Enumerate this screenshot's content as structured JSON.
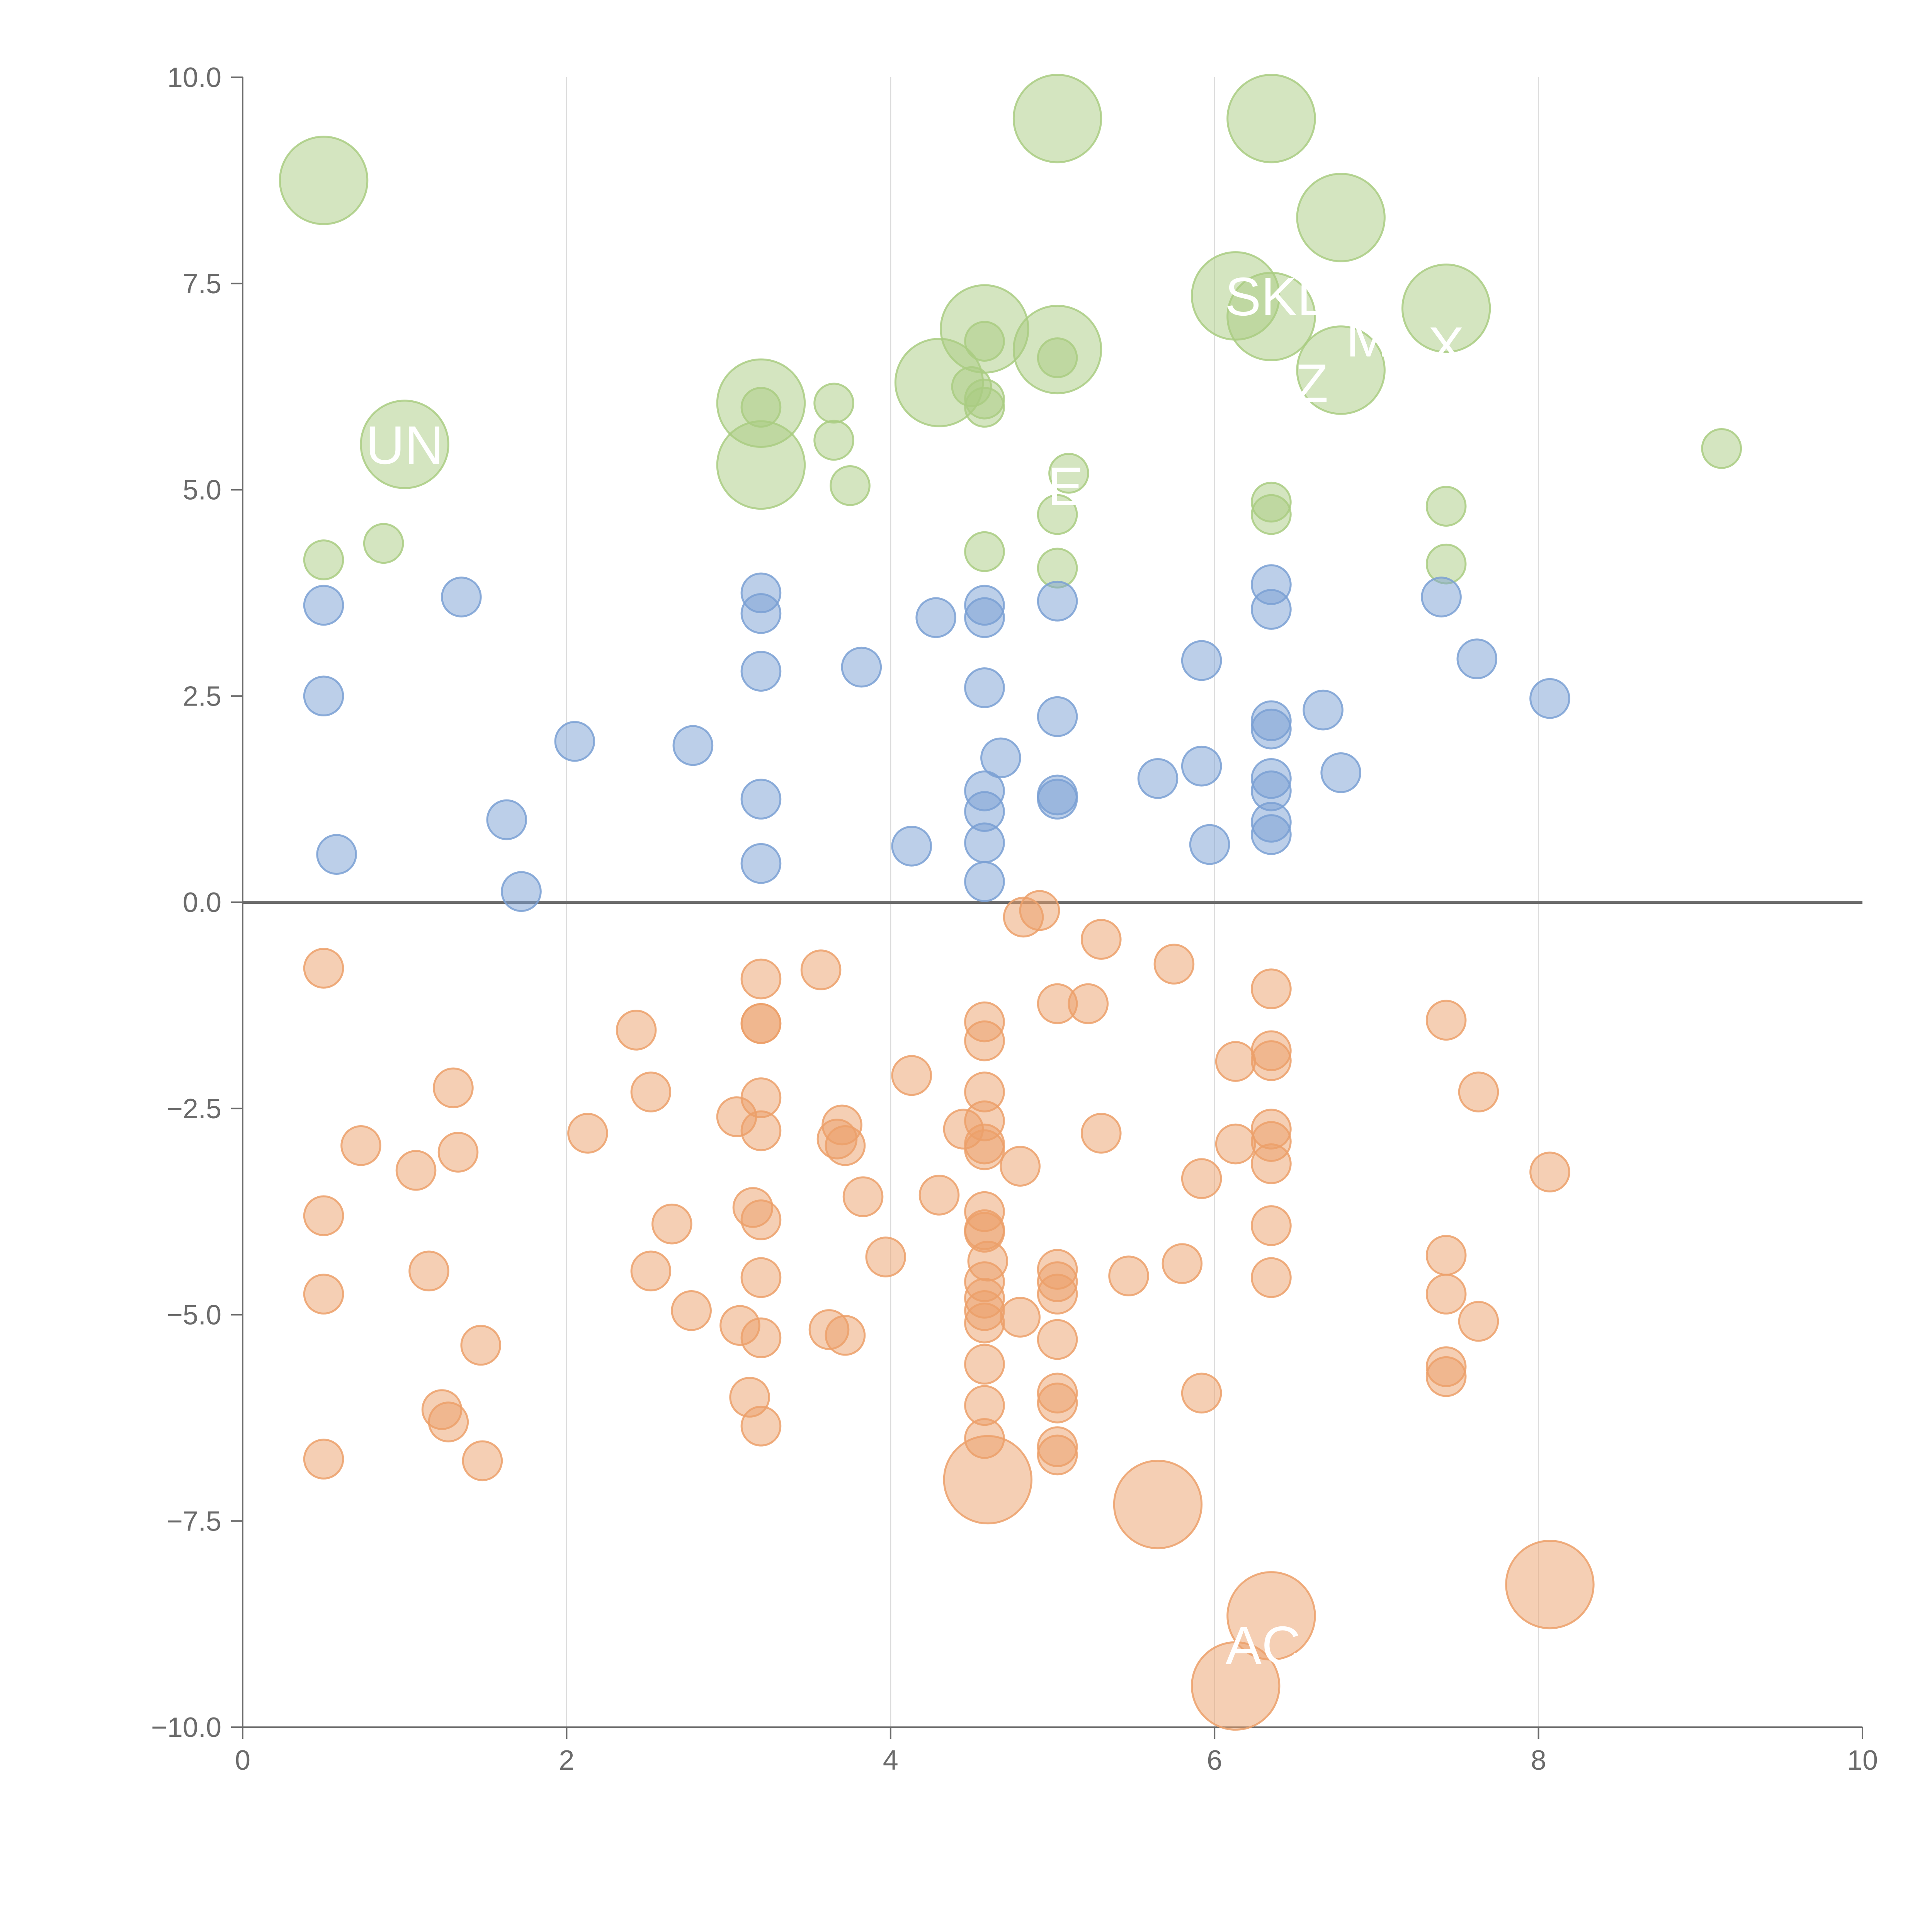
{
  "chart_data": {
    "type": "scatter",
    "title": "",
    "xlabel": "",
    "ylabel": "",
    "xlim": [
      0,
      10
    ],
    "ylim": [
      -10,
      10
    ],
    "x_ticks": [
      "0",
      "2",
      "4",
      "6",
      "8",
      "10"
    ],
    "y_ticks": [
      "−10.0",
      "−7.5",
      "−5.0",
      "−2.5",
      "0.0",
      "2.5",
      "5.0",
      "7.5",
      "10.0"
    ],
    "colors": {
      "green": "#a9cc81",
      "blue": "#7aa0d4",
      "orange": "#eca06a",
      "axis": "#6b6b6b",
      "grid": "#dcdcdc"
    },
    "series": [
      {
        "name": "green",
        "color": "#a9cc81",
        "points": [
          {
            "x": 0.5,
            "y": 8.75,
            "r": 0.27
          },
          {
            "x": 1.0,
            "y": 5.55,
            "r": 0.27
          },
          {
            "x": 0.5,
            "y": 4.15,
            "r": 0.12
          },
          {
            "x": 0.87,
            "y": 4.35,
            "r": 0.12
          },
          {
            "x": 3.2,
            "y": 6.05,
            "r": 0.27
          },
          {
            "x": 3.2,
            "y": 5.3,
            "r": 0.27
          },
          {
            "x": 3.2,
            "y": 6.0,
            "r": 0.12
          },
          {
            "x": 3.65,
            "y": 6.05,
            "r": 0.12
          },
          {
            "x": 3.65,
            "y": 5.6,
            "r": 0.12
          },
          {
            "x": 3.75,
            "y": 5.05,
            "r": 0.12
          },
          {
            "x": 4.3,
            "y": 6.3,
            "r": 0.27
          },
          {
            "x": 4.58,
            "y": 6.95,
            "r": 0.27
          },
          {
            "x": 4.58,
            "y": 6.8,
            "r": 0.12
          },
          {
            "x": 4.5,
            "y": 6.25,
            "r": 0.12
          },
          {
            "x": 4.58,
            "y": 6.1,
            "r": 0.12
          },
          {
            "x": 4.58,
            "y": 6.0,
            "r": 0.12
          },
          {
            "x": 4.58,
            "y": 4.25,
            "r": 0.12
          },
          {
            "x": 5.03,
            "y": 9.5,
            "r": 0.27
          },
          {
            "x": 5.03,
            "y": 6.7,
            "r": 0.27
          },
          {
            "x": 5.03,
            "y": 6.6,
            "r": 0.12
          },
          {
            "x": 5.1,
            "y": 5.2,
            "r": 0.12
          },
          {
            "x": 5.03,
            "y": 4.7,
            "r": 0.12
          },
          {
            "x": 5.03,
            "y": 4.05,
            "r": 0.12
          },
          {
            "x": 6.13,
            "y": 7.35,
            "r": 0.27
          },
          {
            "x": 6.35,
            "y": 9.5,
            "r": 0.27
          },
          {
            "x": 6.35,
            "y": 7.1,
            "r": 0.27
          },
          {
            "x": 6.35,
            "y": 4.85,
            "r": 0.12
          },
          {
            "x": 6.35,
            "y": 4.7,
            "r": 0.12
          },
          {
            "x": 6.78,
            "y": 8.3,
            "r": 0.27
          },
          {
            "x": 6.78,
            "y": 6.45,
            "r": 0.27
          },
          {
            "x": 7.43,
            "y": 7.2,
            "r": 0.27
          },
          {
            "x": 7.43,
            "y": 4.8,
            "r": 0.12
          },
          {
            "x": 7.43,
            "y": 4.1,
            "r": 0.12
          },
          {
            "x": 9.13,
            "y": 5.5,
            "r": 0.12
          }
        ]
      },
      {
        "name": "blue",
        "color": "#7aa0d4",
        "points": [
          {
            "x": 0.5,
            "y": 3.6,
            "r": 0.12
          },
          {
            "x": 0.5,
            "y": 2.5,
            "r": 0.12
          },
          {
            "x": 0.58,
            "y": 0.58,
            "r": 0.12
          },
          {
            "x": 1.35,
            "y": 3.7,
            "r": 0.12
          },
          {
            "x": 1.63,
            "y": 1.0,
            "r": 0.12
          },
          {
            "x": 1.72,
            "y": 0.13,
            "r": 0.12
          },
          {
            "x": 2.05,
            "y": 1.95,
            "r": 0.12
          },
          {
            "x": 2.78,
            "y": 1.9,
            "r": 0.12
          },
          {
            "x": 3.2,
            "y": 3.75,
            "r": 0.12
          },
          {
            "x": 3.2,
            "y": 3.5,
            "r": 0.12
          },
          {
            "x": 3.2,
            "y": 2.8,
            "r": 0.12
          },
          {
            "x": 3.2,
            "y": 1.25,
            "r": 0.12
          },
          {
            "x": 3.2,
            "y": 0.47,
            "r": 0.12
          },
          {
            "x": 3.82,
            "y": 2.85,
            "r": 0.12
          },
          {
            "x": 4.13,
            "y": 0.68,
            "r": 0.12
          },
          {
            "x": 4.28,
            "y": 3.45,
            "r": 0.12
          },
          {
            "x": 4.58,
            "y": 3.6,
            "r": 0.12
          },
          {
            "x": 4.58,
            "y": 3.45,
            "r": 0.12
          },
          {
            "x": 4.58,
            "y": 2.6,
            "r": 0.12
          },
          {
            "x": 4.68,
            "y": 1.75,
            "r": 0.12
          },
          {
            "x": 4.58,
            "y": 1.35,
            "r": 0.12
          },
          {
            "x": 4.58,
            "y": 1.1,
            "r": 0.12
          },
          {
            "x": 4.58,
            "y": 0.72,
            "r": 0.12
          },
          {
            "x": 4.58,
            "y": 0.25,
            "r": 0.12
          },
          {
            "x": 5.03,
            "y": 3.65,
            "r": 0.12
          },
          {
            "x": 5.03,
            "y": 2.25,
            "r": 0.12
          },
          {
            "x": 5.03,
            "y": 1.3,
            "r": 0.12
          },
          {
            "x": 5.03,
            "y": 1.25,
            "r": 0.12
          },
          {
            "x": 5.65,
            "y": 1.5,
            "r": 0.12
          },
          {
            "x": 5.92,
            "y": 2.93,
            "r": 0.12
          },
          {
            "x": 5.92,
            "y": 1.65,
            "r": 0.12
          },
          {
            "x": 5.97,
            "y": 0.7,
            "r": 0.12
          },
          {
            "x": 6.35,
            "y": 3.85,
            "r": 0.12
          },
          {
            "x": 6.35,
            "y": 3.55,
            "r": 0.12
          },
          {
            "x": 6.35,
            "y": 2.2,
            "r": 0.12
          },
          {
            "x": 6.35,
            "y": 2.1,
            "r": 0.12
          },
          {
            "x": 6.35,
            "y": 1.5,
            "r": 0.12
          },
          {
            "x": 6.35,
            "y": 1.35,
            "r": 0.12
          },
          {
            "x": 6.35,
            "y": 0.97,
            "r": 0.12
          },
          {
            "x": 6.35,
            "y": 0.82,
            "r": 0.12
          },
          {
            "x": 6.67,
            "y": 2.33,
            "r": 0.12
          },
          {
            "x": 6.78,
            "y": 1.57,
            "r": 0.12
          },
          {
            "x": 7.4,
            "y": 3.7,
            "r": 0.12
          },
          {
            "x": 7.62,
            "y": 2.95,
            "r": 0.12
          },
          {
            "x": 8.07,
            "y": 2.47,
            "r": 0.12
          }
        ]
      },
      {
        "name": "orange",
        "color": "#eca06a",
        "points": [
          {
            "x": 0.5,
            "y": -0.8,
            "r": 0.12
          },
          {
            "x": 0.5,
            "y": -3.8,
            "r": 0.12
          },
          {
            "x": 0.5,
            "y": -4.75,
            "r": 0.12
          },
          {
            "x": 0.5,
            "y": -6.75,
            "r": 0.12
          },
          {
            "x": 0.73,
            "y": -2.95,
            "r": 0.12
          },
          {
            "x": 1.07,
            "y": -3.25,
            "r": 0.12
          },
          {
            "x": 1.15,
            "y": -4.47,
            "r": 0.12
          },
          {
            "x": 1.23,
            "y": -6.15,
            "r": 0.12
          },
          {
            "x": 1.27,
            "y": -6.3,
            "r": 0.12
          },
          {
            "x": 1.3,
            "y": -2.25,
            "r": 0.12
          },
          {
            "x": 1.33,
            "y": -3.03,
            "r": 0.12
          },
          {
            "x": 1.47,
            "y": -5.37,
            "r": 0.12
          },
          {
            "x": 1.48,
            "y": -6.77,
            "r": 0.12
          },
          {
            "x": 2.13,
            "y": -2.8,
            "r": 0.12
          },
          {
            "x": 2.43,
            "y": -1.55,
            "r": 0.12
          },
          {
            "x": 2.52,
            "y": -2.3,
            "r": 0.12
          },
          {
            "x": 2.52,
            "y": -4.47,
            "r": 0.12
          },
          {
            "x": 2.65,
            "y": -3.9,
            "r": 0.12
          },
          {
            "x": 2.77,
            "y": -4.95,
            "r": 0.12
          },
          {
            "x": 3.05,
            "y": -2.6,
            "r": 0.12
          },
          {
            "x": 3.07,
            "y": -5.13,
            "r": 0.12
          },
          {
            "x": 3.13,
            "y": -6.0,
            "r": 0.12
          },
          {
            "x": 3.15,
            "y": -3.7,
            "r": 0.12
          },
          {
            "x": 3.2,
            "y": -0.93,
            "r": 0.12
          },
          {
            "x": 3.2,
            "y": -1.47,
            "r": 0.12
          },
          {
            "x": 3.2,
            "y": -1.47,
            "r": 0.12
          },
          {
            "x": 3.2,
            "y": -2.37,
            "r": 0.12
          },
          {
            "x": 3.2,
            "y": -2.77,
            "r": 0.12
          },
          {
            "x": 3.2,
            "y": -3.85,
            "r": 0.12
          },
          {
            "x": 3.2,
            "y": -4.55,
            "r": 0.12
          },
          {
            "x": 3.2,
            "y": -5.28,
            "r": 0.12
          },
          {
            "x": 3.2,
            "y": -6.35,
            "r": 0.12
          },
          {
            "x": 3.57,
            "y": -0.82,
            "r": 0.12
          },
          {
            "x": 3.62,
            "y": -5.18,
            "r": 0.12
          },
          {
            "x": 3.67,
            "y": -2.87,
            "r": 0.12
          },
          {
            "x": 3.7,
            "y": -2.7,
            "r": 0.12
          },
          {
            "x": 3.72,
            "y": -2.95,
            "r": 0.12
          },
          {
            "x": 3.72,
            "y": -5.25,
            "r": 0.12
          },
          {
            "x": 3.83,
            "y": -3.57,
            "r": 0.12
          },
          {
            "x": 3.97,
            "y": -4.3,
            "r": 0.12
          },
          {
            "x": 4.13,
            "y": -2.1,
            "r": 0.12
          },
          {
            "x": 4.3,
            "y": -3.55,
            "r": 0.12
          },
          {
            "x": 4.45,
            "y": -2.75,
            "r": 0.12
          },
          {
            "x": 4.58,
            "y": -1.45,
            "r": 0.12
          },
          {
            "x": 4.58,
            "y": -1.68,
            "r": 0.12
          },
          {
            "x": 4.58,
            "y": -2.3,
            "r": 0.12
          },
          {
            "x": 4.58,
            "y": -2.65,
            "r": 0.12
          },
          {
            "x": 4.58,
            "y": -2.93,
            "r": 0.12
          },
          {
            "x": 4.58,
            "y": -3.0,
            "r": 0.12
          },
          {
            "x": 4.58,
            "y": -3.75,
            "r": 0.12
          },
          {
            "x": 4.58,
            "y": -3.97,
            "r": 0.12
          },
          {
            "x": 4.58,
            "y": -4.0,
            "r": 0.12
          },
          {
            "x": 4.6,
            "y": -4.35,
            "r": 0.12
          },
          {
            "x": 4.58,
            "y": -4.6,
            "r": 0.12
          },
          {
            "x": 4.58,
            "y": -4.8,
            "r": 0.12
          },
          {
            "x": 4.58,
            "y": -4.95,
            "r": 0.12
          },
          {
            "x": 4.58,
            "y": -5.1,
            "r": 0.12
          },
          {
            "x": 4.58,
            "y": -5.6,
            "r": 0.12
          },
          {
            "x": 4.58,
            "y": -6.1,
            "r": 0.12
          },
          {
            "x": 4.58,
            "y": -6.5,
            "r": 0.12
          },
          {
            "x": 4.6,
            "y": -7.0,
            "r": 0.27
          },
          {
            "x": 4.8,
            "y": -3.2,
            "r": 0.12
          },
          {
            "x": 4.8,
            "y": -5.03,
            "r": 0.12
          },
          {
            "x": 4.82,
            "y": -0.18,
            "r": 0.12
          },
          {
            "x": 4.92,
            "y": -0.1,
            "r": 0.12
          },
          {
            "x": 5.03,
            "y": -1.23,
            "r": 0.12
          },
          {
            "x": 5.03,
            "y": -4.45,
            "r": 0.12
          },
          {
            "x": 5.03,
            "y": -4.6,
            "r": 0.12
          },
          {
            "x": 5.03,
            "y": -4.75,
            "r": 0.12
          },
          {
            "x": 5.03,
            "y": -5.3,
            "r": 0.12
          },
          {
            "x": 5.03,
            "y": -5.95,
            "r": 0.12
          },
          {
            "x": 5.03,
            "y": -6.07,
            "r": 0.12
          },
          {
            "x": 5.03,
            "y": -6.6,
            "r": 0.12
          },
          {
            "x": 5.03,
            "y": -6.7,
            "r": 0.12
          },
          {
            "x": 5.22,
            "y": -1.23,
            "r": 0.12
          },
          {
            "x": 5.3,
            "y": -0.45,
            "r": 0.12
          },
          {
            "x": 5.3,
            "y": -2.8,
            "r": 0.12
          },
          {
            "x": 5.47,
            "y": -4.53,
            "r": 0.12
          },
          {
            "x": 5.65,
            "y": -7.3,
            "r": 0.27
          },
          {
            "x": 5.75,
            "y": -0.75,
            "r": 0.12
          },
          {
            "x": 5.8,
            "y": -4.38,
            "r": 0.12
          },
          {
            "x": 5.92,
            "y": -3.35,
            "r": 0.12
          },
          {
            "x": 5.92,
            "y": -5.95,
            "r": 0.12
          },
          {
            "x": 6.13,
            "y": -1.93,
            "r": 0.12
          },
          {
            "x": 6.13,
            "y": -2.93,
            "r": 0.12
          },
          {
            "x": 6.13,
            "y": -9.5,
            "r": 0.27
          },
          {
            "x": 6.35,
            "y": -1.05,
            "r": 0.12
          },
          {
            "x": 6.35,
            "y": -1.8,
            "r": 0.12
          },
          {
            "x": 6.35,
            "y": -1.92,
            "r": 0.12
          },
          {
            "x": 6.35,
            "y": -2.75,
            "r": 0.12
          },
          {
            "x": 6.35,
            "y": -2.9,
            "r": 0.12
          },
          {
            "x": 6.35,
            "y": -3.17,
            "r": 0.12
          },
          {
            "x": 6.35,
            "y": -3.92,
            "r": 0.12
          },
          {
            "x": 6.35,
            "y": -4.55,
            "r": 0.12
          },
          {
            "x": 6.35,
            "y": -8.65,
            "r": 0.27
          },
          {
            "x": 7.43,
            "y": -1.43,
            "r": 0.12
          },
          {
            "x": 7.43,
            "y": -4.28,
            "r": 0.12
          },
          {
            "x": 7.43,
            "y": -4.75,
            "r": 0.12
          },
          {
            "x": 7.43,
            "y": -5.63,
            "r": 0.12
          },
          {
            "x": 7.43,
            "y": -5.75,
            "r": 0.12
          },
          {
            "x": 7.63,
            "y": -2.3,
            "r": 0.12
          },
          {
            "x": 7.63,
            "y": -5.08,
            "r": 0.12
          },
          {
            "x": 8.07,
            "y": -3.27,
            "r": 0.12
          },
          {
            "x": 8.07,
            "y": -8.27,
            "r": 0.27
          }
        ]
      }
    ],
    "annotations": [
      {
        "text": "UN",
        "x": 1.0,
        "y": 5.55
      },
      {
        "text": "SKL",
        "x": 6.38,
        "y": 7.35
      },
      {
        "text": "M",
        "x": 6.95,
        "y": 6.85
      },
      {
        "text": "X",
        "x": 7.43,
        "y": 6.75
      },
      {
        "text": "Z",
        "x": 6.6,
        "y": 6.3
      },
      {
        "text": "E",
        "x": 5.08,
        "y": 5.05
      },
      {
        "text": "AC",
        "x": 6.3,
        "y": -9.0
      }
    ]
  }
}
